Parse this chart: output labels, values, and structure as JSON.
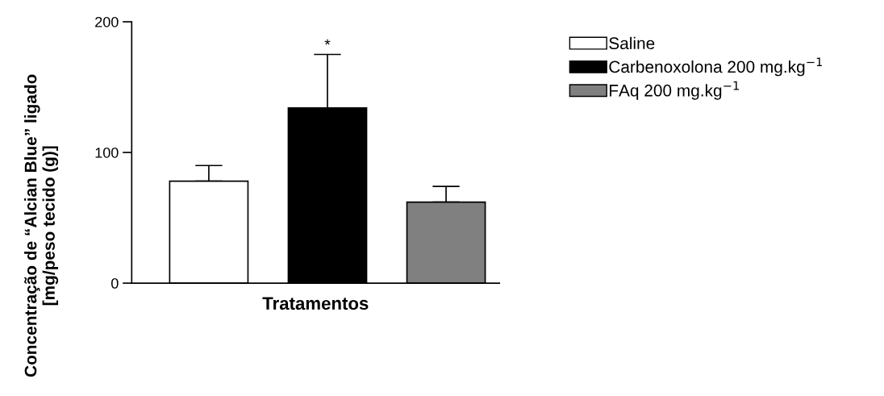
{
  "chart_data": {
    "type": "bar",
    "xlabel": "Tratamentos",
    "ylabel": "Concentração de “Alcian Blue” ligado\n[mg/peso tecido (g)]",
    "categories": [
      null,
      null,
      null
    ],
    "series": [
      {
        "name": "Saline",
        "color": "#ffffff",
        "values": [
          78,
          null,
          null
        ],
        "errors": [
          [
            78,
            90
          ],
          null,
          null
        ]
      },
      {
        "name": "Carbenoxolona 200 mg.kg$^{−1}$",
        "color": "#000000",
        "values": [
          null,
          134,
          null
        ],
        "errors": [
          null,
          [
            134,
            175
          ],
          null
        ]
      },
      {
        "name": "FAq 200 mg.kg$^{−1}$",
        "color": "#808080",
        "values": [
          null,
          null,
          62
        ],
        "errors": [
          null,
          null,
          [
            62,
            74
          ]
        ]
      }
    ],
    "ylim": [
      0,
      200
    ],
    "yticks": [
      0,
      100,
      200
    ],
    "annotations": [
      "*"
    ],
    "grid": false,
    "legend": "top right"
  }
}
